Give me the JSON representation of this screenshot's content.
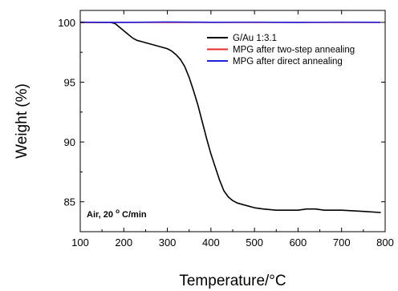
{
  "chart_data": {
    "type": "line",
    "title": "",
    "xlabel": "Temperature/°C",
    "ylabel": "Weight (%)",
    "xlim": [
      100,
      800
    ],
    "ylim": [
      82.5,
      101
    ],
    "xticks": [
      100,
      200,
      300,
      400,
      500,
      600,
      700,
      800
    ],
    "yticks": [
      85,
      90,
      95,
      100
    ],
    "grid": false,
    "legend_position": "top-right",
    "annotation": {
      "prefix": "Air, 20",
      "degree": "o",
      "suffix": "C/min"
    },
    "series": [
      {
        "name": "G/Au 1:3.1",
        "color": "#000000",
        "x": [
          100,
          150,
          170,
          180,
          190,
          200,
          210,
          220,
          230,
          240,
          250,
          260,
          270,
          280,
          290,
          300,
          310,
          320,
          330,
          340,
          350,
          360,
          370,
          380,
          390,
          400,
          410,
          420,
          430,
          440,
          450,
          460,
          470,
          480,
          500,
          520,
          550,
          580,
          600,
          620,
          640,
          660,
          700,
          750,
          790
        ],
        "y": [
          100,
          100,
          100,
          99.9,
          99.6,
          99.3,
          99.0,
          98.7,
          98.5,
          98.4,
          98.3,
          98.2,
          98.1,
          98.0,
          97.9,
          97.8,
          97.6,
          97.3,
          96.9,
          96.3,
          95.4,
          94.3,
          93.1,
          91.7,
          90.3,
          89.0,
          87.9,
          86.8,
          85.9,
          85.4,
          85.1,
          84.9,
          84.8,
          84.7,
          84.5,
          84.4,
          84.3,
          84.3,
          84.3,
          84.4,
          84.4,
          84.3,
          84.3,
          84.2,
          84.1
        ]
      },
      {
        "name": "MPG after two-step annealing",
        "color": "#e8282a",
        "x": [
          100,
          200,
          300,
          400,
          500,
          600,
          700,
          790
        ],
        "y": [
          100,
          100,
          100,
          100,
          100,
          100,
          100,
          100
        ]
      },
      {
        "name": "MPG after direct annealing",
        "color": "#1f1fe0",
        "x": [
          100,
          200,
          300,
          400,
          500,
          600,
          700,
          790
        ],
        "y": [
          100.02,
          100.0,
          100.03,
          100.01,
          100.02,
          100.0,
          100.02,
          100.01
        ]
      }
    ]
  }
}
